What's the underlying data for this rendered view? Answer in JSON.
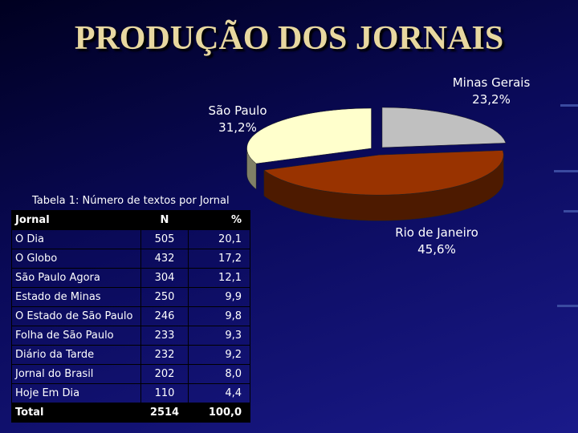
{
  "title": "PRODUÇÃO DOS JORNAIS",
  "chart_data": {
    "type": "pie",
    "categories": [
      "Minas Gerais",
      "Rio de Janeiro",
      "São Paulo"
    ],
    "values": [
      23.2,
      45.6,
      31.2
    ],
    "value_labels": [
      "23,2%",
      "45,6%",
      "31,2%"
    ],
    "colors": [
      "#c0c0c0",
      "#993300",
      "#ffffcc"
    ]
  },
  "table": {
    "caption": "Tabela 1: Número de textos por Jornal",
    "columns": [
      "Jornal",
      "N",
      "%"
    ],
    "rows": [
      [
        "O Dia",
        "505",
        "20,1"
      ],
      [
        "O Globo",
        "432",
        "17,2"
      ],
      [
        "São Paulo Agora",
        "304",
        "12,1"
      ],
      [
        "Estado de Minas",
        "250",
        "9,9"
      ],
      [
        "O Estado de São Paulo",
        "246",
        "9,8"
      ],
      [
        "Folha de São Paulo",
        "233",
        "9,3"
      ],
      [
        "Diário da Tarde",
        "232",
        "9,2"
      ],
      [
        "Jornal do Brasil",
        "202",
        "8,0"
      ],
      [
        "Hoje Em Dia",
        "110",
        "4,4"
      ]
    ],
    "total": [
      "Total",
      "2514",
      "100,0"
    ]
  }
}
